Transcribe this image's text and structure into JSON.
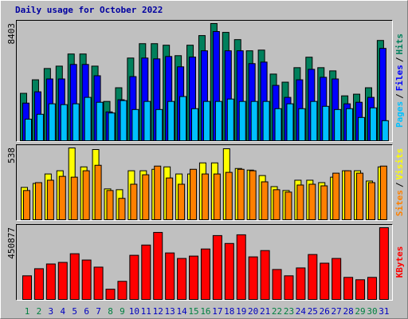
{
  "title": "Daily usage for October 2022",
  "legend_separator": "/",
  "chart_data": [
    {
      "type": "bar",
      "ylim": [
        0,
        8403
      ],
      "yticks": [
        8403
      ],
      "series": [
        {
          "name": "Hits",
          "color": "#00805c",
          "values": [
            3400,
            4370,
            5180,
            5350,
            6220,
            6220,
            5350,
            2820,
            3800,
            5930,
            6960,
            6960,
            6850,
            6100,
            6850,
            7540,
            8403,
            7770,
            7250,
            6450,
            6500,
            4780,
            4200,
            5240,
            5990,
            5240,
            5010,
            3220,
            3340,
            3800,
            7190
          ]
        },
        {
          "name": "Files",
          "color": "#0000ff",
          "values": [
            2700,
            3510,
            4430,
            4430,
            5470,
            5470,
            4660,
            2070,
            2940,
            4600,
            5930,
            5870,
            6040,
            5300,
            6000,
            6450,
            7830,
            6450,
            6450,
            5530,
            5640,
            3970,
            3110,
            4370,
            5120,
            4550,
            4430,
            2650,
            2760,
            3110,
            6620
          ]
        },
        {
          "name": "Pages",
          "color": "#00c0ff",
          "values": [
            1550,
            1900,
            2650,
            2590,
            2650,
            3110,
            2760,
            1990,
            2880,
            2240,
            2820,
            2240,
            2820,
            3170,
            2300,
            2820,
            2820,
            2990,
            2820,
            2820,
            2820,
            2300,
            2650,
            2300,
            2820,
            2470,
            2240,
            2300,
            1670,
            2360,
            1440
          ]
        }
      ]
    },
    {
      "type": "bar",
      "ylim": [
        0,
        538
      ],
      "yticks": [
        538
      ],
      "series": [
        {
          "name": "Visits",
          "color": "#ffff00",
          "values": [
            242,
            272,
            343,
            367,
            538,
            396,
            526,
            231,
            225,
            367,
            367,
            378,
            396,
            343,
            343,
            426,
            426,
            532,
            384,
            372,
            331,
            248,
            219,
            296,
            296,
            278,
            319,
            367,
            367,
            290,
            396
          ]
        },
        {
          "name": "Sites",
          "color": "#ff8000",
          "values": [
            219,
            278,
            296,
            325,
            319,
            367,
            408,
            219,
            160,
            266,
            337,
            402,
            313,
            266,
            378,
            343,
            343,
            355,
            378,
            367,
            284,
            225,
            207,
            260,
            266,
            254,
            349,
            367,
            349,
            278,
            402
          ]
        }
      ]
    },
    {
      "type": "bar",
      "ylim": [
        0,
        450877
      ],
      "yticks": [
        450877
      ],
      "categories": [
        "1",
        "2",
        "3",
        "4",
        "5",
        "6",
        "7",
        "8",
        "9",
        "10",
        "11",
        "12",
        "13",
        "14",
        "15",
        "16",
        "17",
        "18",
        "19",
        "20",
        "21",
        "22",
        "23",
        "24",
        "25",
        "26",
        "27",
        "28",
        "29",
        "30",
        "31"
      ],
      "category_colors": [
        "#008040",
        "#008040",
        "#0000c0",
        "#0000c0",
        "#0000c0",
        "#0000c0",
        "#0000c0",
        "#008040",
        "#008040",
        "#0000c0",
        "#0000c0",
        "#0000c0",
        "#0000c0",
        "#0000c0",
        "#008040",
        "#008040",
        "#0000c0",
        "#0000c0",
        "#0000c0",
        "#0000c0",
        "#0000c0",
        "#008040",
        "#008040",
        "#0000c0",
        "#0000c0",
        "#0000c0",
        "#0000c0",
        "#0000c0",
        "#008040",
        "#008040",
        "#0000c0"
      ],
      "series": [
        {
          "name": "KBytes",
          "color": "#ff0000",
          "values": [
            148650,
            193240,
            222970,
            232880,
            287390,
            247750,
            203150,
            64410,
            113960,
            277480,
            341890,
            421170,
            292340,
            257660,
            272520,
            317120,
            401350,
            351800,
            406300,
            267570,
            307210,
            188290,
            148650,
            198200,
            282430,
            227930,
            257660,
            138740,
            123870,
            138740,
            450877
          ]
        }
      ]
    }
  ]
}
